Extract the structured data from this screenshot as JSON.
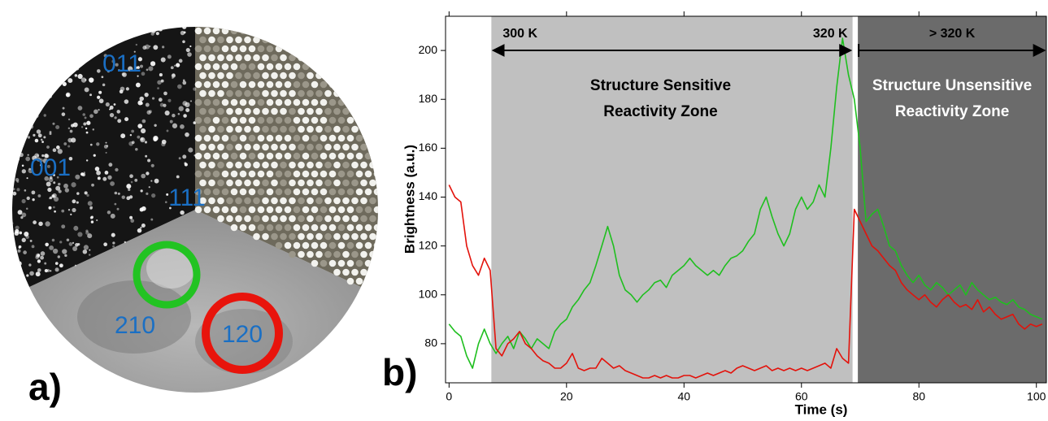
{
  "panel_a": {
    "tag": "a)",
    "labels": [
      "011",
      "001",
      "111",
      "210",
      "120"
    ]
  },
  "chart_data": {
    "type": "line",
    "panel_tag": "b)",
    "xlabel": "Time (s)",
    "ylabel": "Brightness (a.u.)",
    "xlim": [
      -0.6,
      101.7
    ],
    "ylim": [
      64,
      214
    ],
    "xticks": [
      0,
      20,
      40,
      60,
      80,
      100
    ],
    "yticks": [
      80,
      100,
      120,
      140,
      160,
      180,
      200
    ],
    "zones": [
      {
        "start": 7.2,
        "end": 68.7,
        "color": "#c0c0c0",
        "text_color": "#000000",
        "lines": [
          "Structure Sensitive",
          "Reactivity Zone"
        ],
        "arrow_labels": [
          "300 K",
          "320 K"
        ]
      },
      {
        "start": 69.6,
        "end": 101.7,
        "color": "#6b6b6b",
        "text_color": "#ffffff",
        "lines": [
          "Structure Unsensitive",
          "Reactivity Zone"
        ],
        "arrow_labels": [
          "> 320 K"
        ]
      }
    ],
    "x": [
      0,
      1,
      2,
      3,
      4,
      5,
      6,
      7,
      8,
      9,
      10,
      11,
      12,
      13,
      14,
      15,
      16,
      17,
      18,
      19,
      20,
      21,
      22,
      23,
      24,
      25,
      26,
      27,
      28,
      29,
      30,
      31,
      32,
      33,
      34,
      35,
      36,
      37,
      38,
      39,
      40,
      41,
      42,
      43,
      44,
      45,
      46,
      47,
      48,
      49,
      50,
      51,
      52,
      53,
      54,
      55,
      56,
      57,
      58,
      59,
      60,
      61,
      62,
      63,
      64,
      65,
      66,
      67,
      68,
      69,
      70,
      71,
      72,
      73,
      74,
      75,
      76,
      77,
      78,
      79,
      80,
      81,
      82,
      83,
      84,
      85,
      86,
      87,
      88,
      89,
      90,
      91,
      92,
      93,
      94,
      95,
      96,
      97,
      98,
      99,
      100,
      101
    ],
    "series": [
      {
        "color": "#1fbf1f",
        "values": [
          88,
          85,
          83,
          75,
          70,
          80,
          86,
          80,
          76,
          80,
          83,
          78,
          85,
          82,
          78,
          82,
          80,
          78,
          85,
          88,
          90,
          95,
          98,
          102,
          105,
          112,
          120,
          128,
          120,
          108,
          102,
          100,
          97,
          100,
          102,
          105,
          106,
          103,
          108,
          110,
          112,
          115,
          112,
          110,
          108,
          110,
          108,
          112,
          115,
          116,
          118,
          122,
          125,
          135,
          140,
          132,
          125,
          120,
          125,
          135,
          140,
          135,
          138,
          145,
          140,
          160,
          185,
          205,
          190,
          180,
          160,
          130,
          133,
          135,
          128,
          120,
          118,
          112,
          108,
          105,
          108,
          104,
          102,
          105,
          103,
          100,
          102,
          104,
          100,
          105,
          102,
          100,
          98,
          99,
          97,
          96,
          98,
          95,
          94,
          92,
          91,
          90
        ]
      },
      {
        "color": "#e3120b",
        "values": [
          145,
          140,
          138,
          120,
          112,
          108,
          115,
          110,
          78,
          75,
          80,
          82,
          85,
          80,
          78,
          75,
          73,
          72,
          70,
          70,
          72,
          76,
          70,
          69,
          70,
          70,
          74,
          72,
          70,
          71,
          69,
          68,
          67,
          66,
          66,
          67,
          66,
          67,
          66,
          66,
          67,
          67,
          66,
          67,
          68,
          67,
          68,
          69,
          68,
          70,
          71,
          70,
          69,
          70,
          71,
          69,
          70,
          69,
          70,
          69,
          70,
          69,
          70,
          71,
          72,
          70,
          78,
          74,
          72,
          135,
          130,
          125,
          120,
          118,
          115,
          112,
          110,
          105,
          102,
          100,
          98,
          100,
          97,
          95,
          98,
          100,
          97,
          95,
          96,
          94,
          98,
          93,
          95,
          92,
          90,
          91,
          92,
          88,
          86,
          88,
          87,
          88
        ]
      }
    ]
  }
}
